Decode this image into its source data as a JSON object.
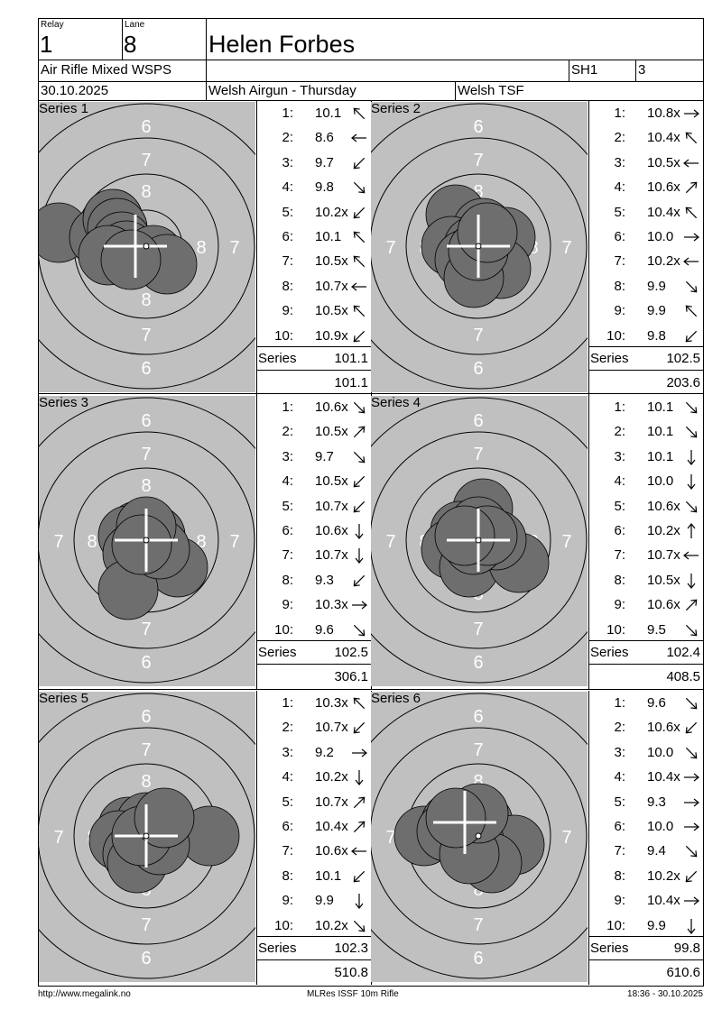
{
  "header": {
    "relay_label": "Relay",
    "relay": "1",
    "lane_label": "Lane",
    "lane": "8",
    "shooter_name": "Helen Forbes",
    "event": "Air Rifle Mixed WSPS",
    "squad": "SH1",
    "class_code": "3",
    "date": "30.10.2025",
    "competition": "Welsh Airgun - Thursday",
    "club": "Welsh TSF"
  },
  "series_label": "Series",
  "series": [
    {
      "title": "Series 1",
      "series_total": "101.1",
      "running_total": "101.1",
      "shots": [
        {
          "n": "1:",
          "v": "10.1",
          "dir": "up-left"
        },
        {
          "n": "2:",
          "v": "8.6",
          "dir": "left"
        },
        {
          "n": "3:",
          "v": "9.7",
          "dir": "down-left"
        },
        {
          "n": "4:",
          "v": "9.8",
          "dir": "down-right"
        },
        {
          "n": "5:",
          "v": "10.2x",
          "dir": "down-left"
        },
        {
          "n": "6:",
          "v": "10.1",
          "dir": "up-left"
        },
        {
          "n": "7:",
          "v": "10.5x",
          "dir": "up-left"
        },
        {
          "n": "8:",
          "v": "10.7x",
          "dir": "left"
        },
        {
          "n": "9:",
          "v": "10.5x",
          "dir": "up-left"
        },
        {
          "n": "10:",
          "v": "10.9x",
          "dir": "down-left"
        }
      ]
    },
    {
      "title": "Series 2",
      "series_total": "102.5",
      "running_total": "203.6",
      "shots": [
        {
          "n": "1:",
          "v": "10.8x",
          "dir": "right"
        },
        {
          "n": "2:",
          "v": "10.4x",
          "dir": "up-left"
        },
        {
          "n": "3:",
          "v": "10.5x",
          "dir": "left"
        },
        {
          "n": "4:",
          "v": "10.6x",
          "dir": "up-right"
        },
        {
          "n": "5:",
          "v": "10.4x",
          "dir": "up-left"
        },
        {
          "n": "6:",
          "v": "10.0",
          "dir": "right"
        },
        {
          "n": "7:",
          "v": "10.2x",
          "dir": "left"
        },
        {
          "n": "8:",
          "v": "9.9",
          "dir": "down-right"
        },
        {
          "n": "9:",
          "v": "9.9",
          "dir": "up-left"
        },
        {
          "n": "10:",
          "v": "9.8",
          "dir": "down-left"
        }
      ]
    },
    {
      "title": "Series 3",
      "series_total": "102.5",
      "running_total": "306.1",
      "shots": [
        {
          "n": "1:",
          "v": "10.6x",
          "dir": "down-right"
        },
        {
          "n": "2:",
          "v": "10.5x",
          "dir": "up-right"
        },
        {
          "n": "3:",
          "v": "9.7",
          "dir": "down-right"
        },
        {
          "n": "4:",
          "v": "10.5x",
          "dir": "down-left"
        },
        {
          "n": "5:",
          "v": "10.7x",
          "dir": "down-left"
        },
        {
          "n": "6:",
          "v": "10.6x",
          "dir": "down"
        },
        {
          "n": "7:",
          "v": "10.7x",
          "dir": "down"
        },
        {
          "n": "8:",
          "v": "9.3",
          "dir": "down-left"
        },
        {
          "n": "9:",
          "v": "10.3x",
          "dir": "right"
        },
        {
          "n": "10:",
          "v": "9.6",
          "dir": "down-right"
        }
      ]
    },
    {
      "title": "Series 4",
      "series_total": "102.4",
      "running_total": "408.5",
      "shots": [
        {
          "n": "1:",
          "v": "10.1",
          "dir": "down-right"
        },
        {
          "n": "2:",
          "v": "10.1",
          "dir": "down-right"
        },
        {
          "n": "3:",
          "v": "10.1",
          "dir": "down"
        },
        {
          "n": "4:",
          "v": "10.0",
          "dir": "down"
        },
        {
          "n": "5:",
          "v": "10.6x",
          "dir": "down-right"
        },
        {
          "n": "6:",
          "v": "10.2x",
          "dir": "up"
        },
        {
          "n": "7:",
          "v": "10.7x",
          "dir": "left"
        },
        {
          "n": "8:",
          "v": "10.5x",
          "dir": "down"
        },
        {
          "n": "9:",
          "v": "10.6x",
          "dir": "up-right"
        },
        {
          "n": "10:",
          "v": "9.5",
          "dir": "down-right"
        }
      ]
    },
    {
      "title": "Series 5",
      "series_total": "102.3",
      "running_total": "510.8",
      "shots": [
        {
          "n": "1:",
          "v": "10.3x",
          "dir": "up-left"
        },
        {
          "n": "2:",
          "v": "10.7x",
          "dir": "down-left"
        },
        {
          "n": "3:",
          "v": "9.2",
          "dir": "right"
        },
        {
          "n": "4:",
          "v": "10.2x",
          "dir": "down"
        },
        {
          "n": "5:",
          "v": "10.7x",
          "dir": "up-right"
        },
        {
          "n": "6:",
          "v": "10.4x",
          "dir": "up-right"
        },
        {
          "n": "7:",
          "v": "10.6x",
          "dir": "left"
        },
        {
          "n": "8:",
          "v": "10.1",
          "dir": "down-left"
        },
        {
          "n": "9:",
          "v": "9.9",
          "dir": "down"
        },
        {
          "n": "10:",
          "v": "10.2x",
          "dir": "down-right"
        }
      ]
    },
    {
      "title": "Series 6",
      "series_total": "99.8",
      "running_total": "610.6",
      "shots": [
        {
          "n": "1:",
          "v": "9.6",
          "dir": "down-right"
        },
        {
          "n": "2:",
          "v": "10.6x",
          "dir": "down-left"
        },
        {
          "n": "3:",
          "v": "10.0",
          "dir": "down-right"
        },
        {
          "n": "4:",
          "v": "10.4x",
          "dir": "right"
        },
        {
          "n": "5:",
          "v": "9.3",
          "dir": "right"
        },
        {
          "n": "6:",
          "v": "10.0",
          "dir": "right"
        },
        {
          "n": "7:",
          "v": "9.4",
          "dir": "down-right"
        },
        {
          "n": "8:",
          "v": "10.2x",
          "dir": "down-left"
        },
        {
          "n": "9:",
          "v": "10.4x",
          "dir": "right"
        },
        {
          "n": "10:",
          "v": "9.9",
          "dir": "down"
        }
      ]
    }
  ],
  "target": {
    "ring_labels": {
      "outer": "6",
      "mid": "7",
      "inner": "8"
    },
    "colors": {
      "background": "#c0c0c0",
      "shot": "#6e6e6e",
      "crosshair": "#ffffff"
    }
  },
  "footer": {
    "website": "http://www.megalink.no",
    "software": "MLRes ISSF 10m Rifle",
    "timestamp": "18:36 - 30.10.2025"
  }
}
